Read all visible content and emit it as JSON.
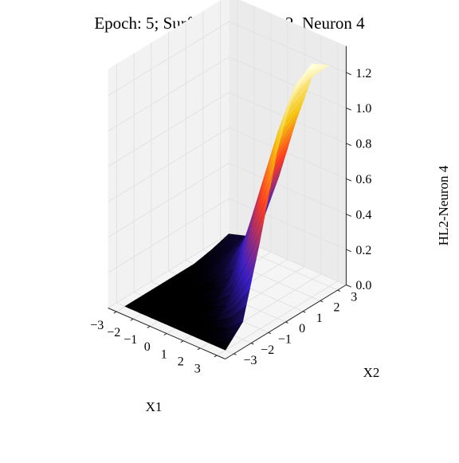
{
  "chart_data": {
    "type": "surface3d",
    "title": "Epoch: 5; Surface for Layer 2, Neuron 4",
    "xlabel": "X1",
    "ylabel": "X2",
    "zlabel": "HL2-Neuron 4",
    "xlim": [
      -3.5,
      3.5
    ],
    "ylim": [
      -3.5,
      3.5
    ],
    "zlim": [
      0.0,
      1.35
    ],
    "x_ticks": [
      "−3",
      "−2",
      "−1",
      "0",
      "1",
      "2",
      "3"
    ],
    "y_ticks": [
      "−3",
      "−2",
      "−1",
      "0",
      "1",
      "2",
      "3"
    ],
    "z_ticks": [
      "0.0",
      "0.2",
      "0.4",
      "0.6",
      "0.8",
      "1.0",
      "1.2"
    ],
    "colormap": "gnuplot",
    "colormap_stops": [
      "#000000",
      "#3a1fc8",
      "#ff3d1f",
      "#f4c510",
      "#ffffe0"
    ],
    "grid": true,
    "x": [
      -3.0,
      -2.0,
      -1.0,
      0.0,
      1.0,
      2.0,
      3.0
    ],
    "y": [
      -3.0,
      -2.0,
      -1.0,
      0.0,
      1.0,
      2.0,
      3.0
    ],
    "z": [
      [
        0.0,
        0.0,
        0.0,
        0.0,
        0.0,
        0.0,
        0.0
      ],
      [
        0.0,
        0.0,
        0.0,
        0.0,
        0.0,
        0.02,
        0.1
      ],
      [
        0.0,
        0.0,
        0.0,
        0.0,
        0.05,
        0.25,
        0.5
      ],
      [
        0.0,
        0.0,
        0.0,
        0.06,
        0.3,
        0.65,
        0.95
      ],
      [
        0.0,
        0.02,
        0.08,
        0.25,
        0.6,
        0.95,
        1.25
      ],
      [
        0.02,
        0.05,
        0.15,
        0.4,
        0.75,
        1.1,
        1.32
      ],
      [
        0.05,
        0.08,
        0.2,
        0.5,
        0.85,
        1.15,
        1.25
      ]
    ]
  }
}
